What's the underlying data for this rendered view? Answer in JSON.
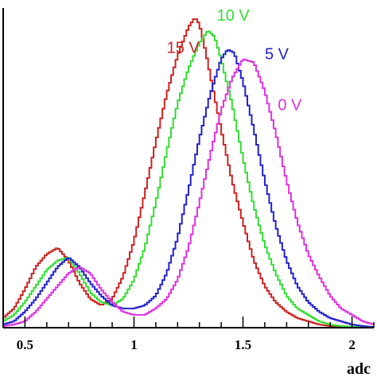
{
  "chart_data": {
    "type": "line",
    "title": "",
    "xlabel": "adc",
    "ylabel": "",
    "xlim": [
      0.4,
      2.1
    ],
    "ylim": [
      0,
      1.0
    ],
    "x_ticks": [
      0.5,
      1,
      1.5,
      2
    ],
    "x_tick_labels": [
      "0.5",
      "1",
      "1.5",
      "2"
    ],
    "grid": false,
    "legend": "inline labels near peaks",
    "series": [
      {
        "name": "15 V",
        "color": "#cc2222",
        "x": [
          0.4,
          0.45,
          0.5,
          0.55,
          0.6,
          0.65,
          0.7,
          0.75,
          0.8,
          0.85,
          0.9,
          0.95,
          1.0,
          1.05,
          1.1,
          1.15,
          1.2,
          1.25,
          1.28,
          1.3,
          1.33,
          1.35,
          1.4,
          1.45,
          1.5,
          1.55,
          1.6,
          1.65,
          1.7,
          1.75,
          1.8,
          1.85,
          1.9,
          1.95,
          2.0,
          2.05,
          2.1
        ],
        "y": [
          0.03,
          0.06,
          0.12,
          0.19,
          0.23,
          0.25,
          0.21,
          0.14,
          0.09,
          0.07,
          0.09,
          0.16,
          0.27,
          0.42,
          0.58,
          0.73,
          0.85,
          0.94,
          0.97,
          0.95,
          0.86,
          0.79,
          0.62,
          0.46,
          0.33,
          0.21,
          0.13,
          0.08,
          0.05,
          0.03,
          0.02,
          0.01,
          0.005,
          0.003,
          0.002,
          0.001,
          0.0
        ]
      },
      {
        "name": "10 V",
        "color": "#33dd33",
        "x": [
          0.4,
          0.45,
          0.5,
          0.55,
          0.6,
          0.65,
          0.7,
          0.75,
          0.8,
          0.85,
          0.9,
          0.95,
          1.0,
          1.05,
          1.1,
          1.15,
          1.2,
          1.25,
          1.3,
          1.34,
          1.37,
          1.4,
          1.45,
          1.5,
          1.55,
          1.6,
          1.65,
          1.7,
          1.75,
          1.8,
          1.85,
          1.9,
          1.95,
          2.0,
          2.05,
          2.1
        ],
        "y": [
          0.02,
          0.04,
          0.08,
          0.13,
          0.18,
          0.21,
          0.22,
          0.17,
          0.11,
          0.08,
          0.07,
          0.09,
          0.15,
          0.25,
          0.39,
          0.55,
          0.7,
          0.81,
          0.89,
          0.93,
          0.91,
          0.84,
          0.7,
          0.53,
          0.38,
          0.26,
          0.17,
          0.1,
          0.06,
          0.04,
          0.02,
          0.01,
          0.005,
          0.003,
          0.002,
          0.001
        ]
      },
      {
        "name": "5 V",
        "color": "#2222cc",
        "x": [
          0.4,
          0.45,
          0.5,
          0.55,
          0.6,
          0.65,
          0.7,
          0.75,
          0.8,
          0.85,
          0.9,
          0.95,
          1.0,
          1.05,
          1.1,
          1.15,
          1.2,
          1.25,
          1.3,
          1.35,
          1.4,
          1.43,
          1.46,
          1.5,
          1.55,
          1.6,
          1.65,
          1.7,
          1.75,
          1.8,
          1.85,
          1.9,
          1.95,
          2.0,
          2.05,
          2.1
        ],
        "y": [
          0.01,
          0.02,
          0.05,
          0.09,
          0.14,
          0.19,
          0.22,
          0.19,
          0.14,
          0.1,
          0.07,
          0.06,
          0.06,
          0.07,
          0.1,
          0.17,
          0.28,
          0.43,
          0.59,
          0.73,
          0.84,
          0.87,
          0.86,
          0.77,
          0.62,
          0.46,
          0.32,
          0.21,
          0.13,
          0.08,
          0.05,
          0.03,
          0.02,
          0.01,
          0.005,
          0.002
        ]
      },
      {
        "name": "0 V",
        "color": "#dd33dd",
        "x": [
          0.4,
          0.45,
          0.5,
          0.55,
          0.6,
          0.65,
          0.7,
          0.75,
          0.8,
          0.85,
          0.9,
          0.95,
          1.0,
          1.05,
          1.1,
          1.15,
          1.2,
          1.25,
          1.3,
          1.35,
          1.4,
          1.45,
          1.5,
          1.55,
          1.6,
          1.65,
          1.7,
          1.75,
          1.8,
          1.85,
          1.9,
          1.95,
          2.0,
          2.05,
          2.1
        ],
        "y": [
          0.005,
          0.01,
          0.02,
          0.05,
          0.09,
          0.13,
          0.17,
          0.19,
          0.17,
          0.12,
          0.08,
          0.05,
          0.04,
          0.04,
          0.06,
          0.09,
          0.15,
          0.25,
          0.39,
          0.54,
          0.68,
          0.78,
          0.84,
          0.83,
          0.74,
          0.61,
          0.46,
          0.33,
          0.23,
          0.16,
          0.1,
          0.06,
          0.04,
          0.02,
          0.01
        ]
      }
    ],
    "annotations": [
      {
        "text": "15 V",
        "series": "15 V",
        "x": 1.15,
        "y": 0.86
      },
      {
        "text": "10 V",
        "series": "10 V",
        "x": 1.38,
        "y": 0.96
      },
      {
        "text": "5 V",
        "series": "5 V",
        "x": 1.6,
        "y": 0.84
      },
      {
        "text": "0 V",
        "series": "0 V",
        "x": 1.66,
        "y": 0.68
      }
    ]
  }
}
